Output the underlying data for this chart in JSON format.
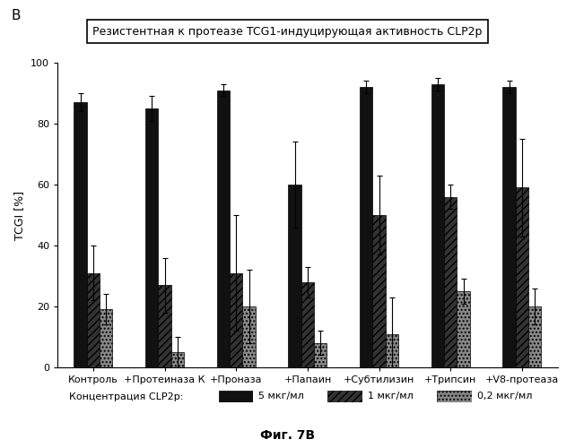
{
  "title": "Резистентная к протеазе TCG1-индуцирующая активность CLP2p",
  "ylabel": "TCGI [%]",
  "xlabel_caption": "Фиг. 7В",
  "top_label": "В",
  "legend_title": "Концентрация CLP2р:",
  "legend_labels": [
    "5 мкг/мл",
    "1 мкг/мл",
    "0,2 мкг/мл"
  ],
  "categories": [
    "Контроль",
    "+Протеиназа К",
    "+Проназа",
    "+Папаин",
    "+Субтилизин",
    "+Трипсин",
    "+V8-протеаза"
  ],
  "ylim": [
    0,
    100
  ],
  "yticks": [
    0,
    20,
    40,
    60,
    80,
    100
  ],
  "bar_width": 0.18,
  "colors": [
    "#111111",
    "#333333",
    "#888888"
  ],
  "hatches": [
    "",
    "////",
    "...."
  ],
  "values": [
    [
      87,
      31,
      19
    ],
    [
      85,
      27,
      5
    ],
    [
      91,
      31,
      20
    ],
    [
      60,
      28,
      8
    ],
    [
      92,
      50,
      11
    ],
    [
      93,
      56,
      25
    ],
    [
      92,
      59,
      20
    ]
  ],
  "errors": [
    [
      3,
      9,
      5
    ],
    [
      4,
      9,
      5
    ],
    [
      2,
      19,
      12
    ],
    [
      14,
      5,
      4
    ],
    [
      2,
      13,
      12
    ],
    [
      2,
      4,
      4
    ],
    [
      2,
      16,
      6
    ]
  ],
  "background_color": "#ffffff",
  "title_fontsize": 9,
  "axis_fontsize": 9,
  "tick_fontsize": 8,
  "legend_fontsize": 8
}
